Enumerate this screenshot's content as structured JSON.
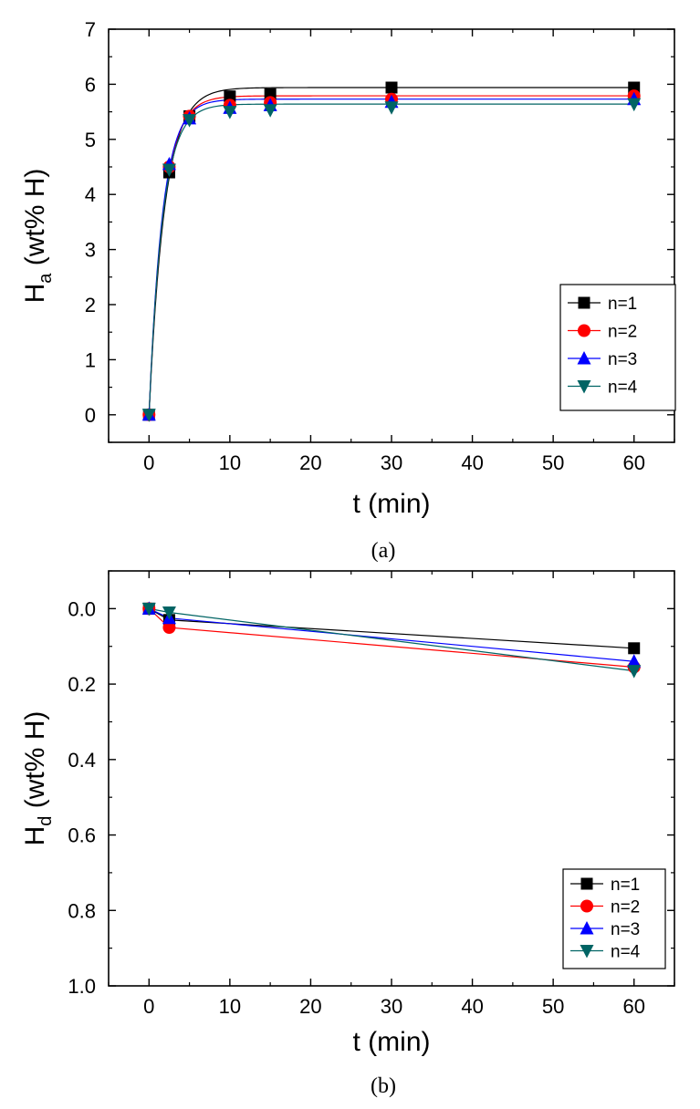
{
  "chart_data": [
    {
      "panel": "a",
      "type": "line",
      "caption": "(a)",
      "xlabel": "t (min)",
      "ylabel_main": "H",
      "ylabel_sub": "a",
      "ylabel_rest": " (wt% H)",
      "xlim": [
        -5,
        65
      ],
      "ylim": [
        -0.5,
        7
      ],
      "yreverse": false,
      "xticks": [
        0,
        10,
        20,
        30,
        40,
        50,
        60
      ],
      "yticks": [
        0,
        1,
        2,
        3,
        4,
        5,
        6,
        7
      ],
      "ytick_decimals": 0,
      "legend_position": "middle-right",
      "fit_curves": true,
      "series": [
        {
          "name": "n=1",
          "color": "#000000",
          "marker": "square",
          "x": [
            0,
            2.5,
            5,
            10,
            15,
            30,
            60
          ],
          "y": [
            0,
            4.4,
            5.42,
            5.78,
            5.82,
            5.94,
            5.94
          ]
        },
        {
          "name": "n=2",
          "color": "#ff0000",
          "marker": "circle",
          "x": [
            0,
            2.5,
            5,
            10,
            15,
            30,
            60
          ],
          "y": [
            0,
            4.5,
            5.42,
            5.62,
            5.67,
            5.73,
            5.79
          ]
        },
        {
          "name": "n=3",
          "color": "#0000ff",
          "marker": "triangle-up",
          "x": [
            0,
            2.5,
            5,
            10,
            15,
            30,
            60
          ],
          "y": [
            0,
            4.55,
            5.38,
            5.57,
            5.62,
            5.68,
            5.73
          ]
        },
        {
          "name": "n=4",
          "color": "#006464",
          "marker": "triangle-down",
          "x": [
            0,
            2.5,
            5,
            10,
            15,
            30,
            60
          ],
          "y": [
            0,
            4.45,
            5.35,
            5.5,
            5.53,
            5.58,
            5.64
          ]
        }
      ]
    },
    {
      "panel": "b",
      "type": "line",
      "caption": "(b)",
      "xlabel": "t (min)",
      "ylabel_main": "H",
      "ylabel_sub": "d",
      "ylabel_rest": " (wt% H)",
      "xlim": [
        -5,
        65
      ],
      "ylim": [
        -0.1,
        1.0
      ],
      "yreverse": true,
      "xticks": [
        0,
        10,
        20,
        30,
        40,
        50,
        60
      ],
      "yticks": [
        0.0,
        0.2,
        0.4,
        0.6,
        0.8,
        1.0
      ],
      "ytick_decimals": 1,
      "legend_position": "bottom-right",
      "fit_curves": false,
      "series": [
        {
          "name": "n=1",
          "color": "#000000",
          "marker": "square",
          "x": [
            0,
            2.5,
            60
          ],
          "y": [
            0,
            0.03,
            0.105
          ]
        },
        {
          "name": "n=2",
          "color": "#ff0000",
          "marker": "circle",
          "x": [
            0,
            2.5,
            60
          ],
          "y": [
            0,
            0.05,
            0.155
          ]
        },
        {
          "name": "n=3",
          "color": "#0000ff",
          "marker": "triangle-up",
          "x": [
            0,
            2.5,
            60
          ],
          "y": [
            0,
            0.025,
            0.14
          ]
        },
        {
          "name": "n=4",
          "color": "#006464",
          "marker": "triangle-down",
          "x": [
            0,
            2.5,
            60
          ],
          "y": [
            0,
            0.01,
            0.165
          ]
        }
      ]
    }
  ]
}
